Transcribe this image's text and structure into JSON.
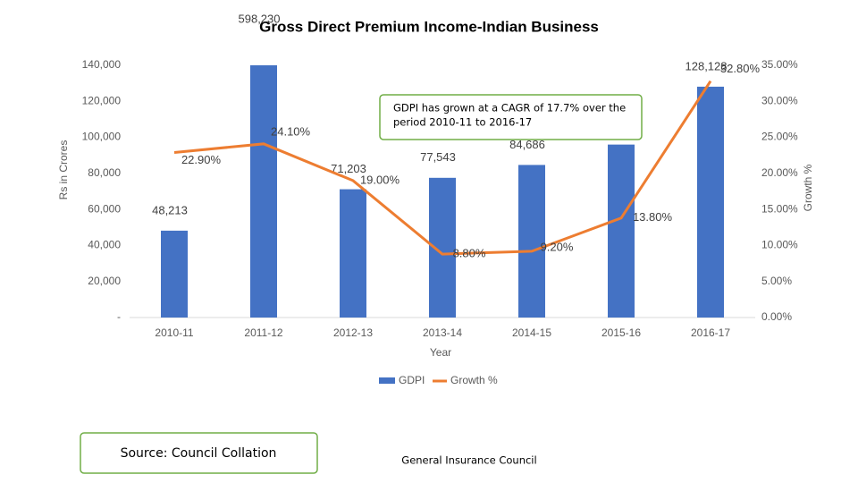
{
  "chart_data": {
    "type": "combo",
    "title": "Gross Direct Premium Income-Indian Business",
    "categories": [
      "2010-11",
      "2011-12",
      "2012-13",
      "2013-14",
      "2014-15",
      "2015-16",
      "2016-17"
    ],
    "series": [
      {
        "name": "GDPI",
        "type": "bar",
        "color": "#4472c4",
        "values": [
          48213,
          598230,
          71203,
          77543,
          84686,
          96000,
          128128
        ],
        "value_labels": [
          "48,213",
          "598,230",
          "71,203",
          "77,543",
          "84,686",
          null,
          "128,128"
        ]
      },
      {
        "name": "Growth %",
        "type": "line",
        "axis": "y2",
        "color": "#ed7d31",
        "values": [
          22.9,
          24.1,
          19.0,
          8.8,
          9.2,
          13.8,
          32.8
        ],
        "value_labels": [
          "22.90%",
          "24.10%",
          "19.00%",
          "8.80%",
          "9.20%",
          "13.80%",
          "32.80%"
        ]
      }
    ],
    "ylabel": "Rs in Crores",
    "y2label": "Growth %",
    "xlabel": "Year",
    "ylim": [
      0,
      140000
    ],
    "yticks": [
      {
        "value": 0,
        "label": "-"
      },
      {
        "value": 20000,
        "label": "20,000"
      },
      {
        "value": 40000,
        "label": "40,000"
      },
      {
        "value": 60000,
        "label": "60,000"
      },
      {
        "value": 80000,
        "label": "80,000"
      },
      {
        "value": 100000,
        "label": "100,000"
      },
      {
        "value": 120000,
        "label": "120,000"
      },
      {
        "value": 140000,
        "label": "140,000"
      }
    ],
    "y2lim": [
      0,
      35
    ],
    "y2ticks": [
      {
        "value": 0,
        "label": "0.00%"
      },
      {
        "value": 5,
        "label": "5.00%"
      },
      {
        "value": 10,
        "label": "10.00%"
      },
      {
        "value": 15,
        "label": "15.00%"
      },
      {
        "value": 20,
        "label": "20.00%"
      },
      {
        "value": 25,
        "label": "25.00%"
      },
      {
        "value": 30,
        "label": "30.00%"
      },
      {
        "value": 35,
        "label": "35.00%"
      }
    ],
    "legend": "bottom",
    "annotation": [
      "GDPI has grown at a CAGR of 17.7% over the",
      "period 2010-11 to 2016-17"
    ]
  },
  "footer": {
    "source": "Source: Council Collation",
    "organization": "General Insurance Council"
  }
}
